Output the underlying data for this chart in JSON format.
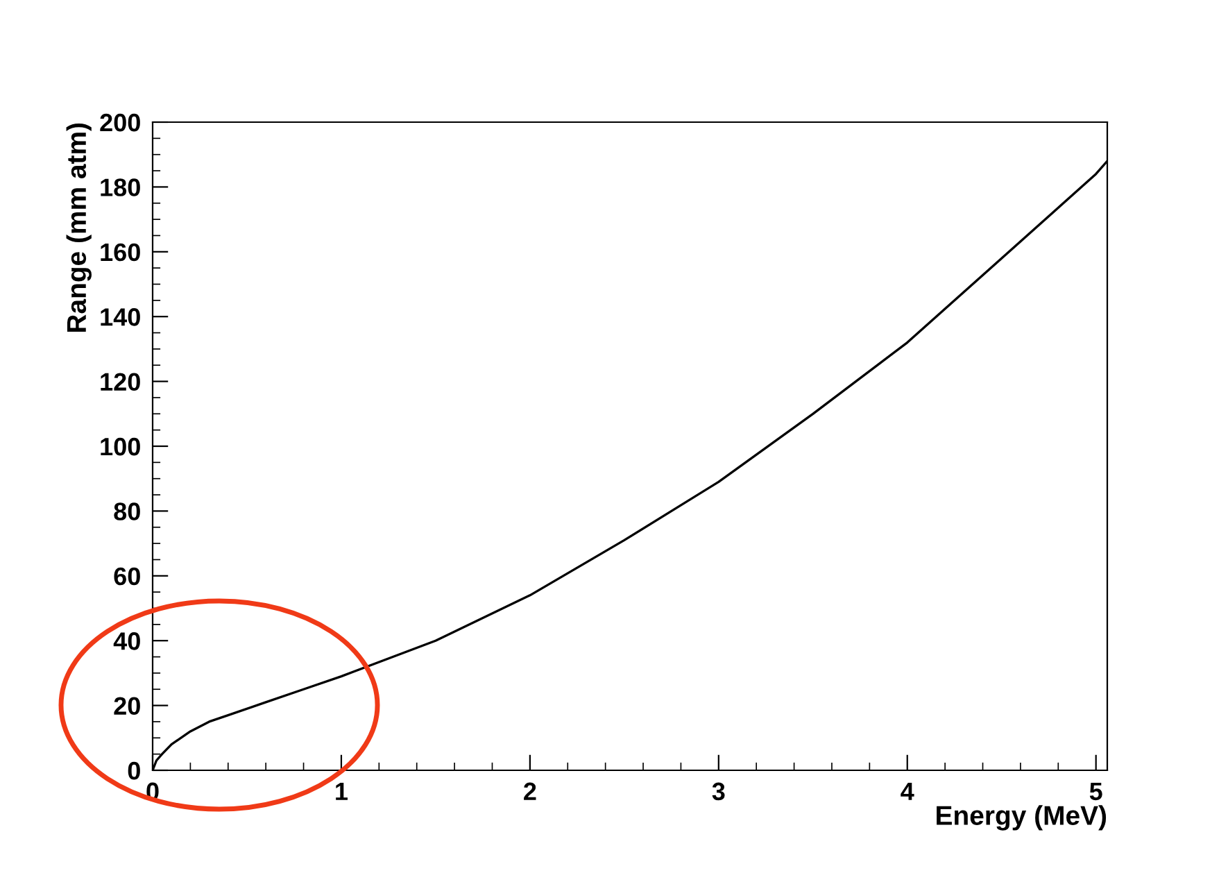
{
  "chart_data": {
    "type": "line",
    "xlabel": "Energy (MeV)",
    "ylabel": "Range (mm atm)",
    "x": [
      0,
      0.02,
      0.05,
      0.1,
      0.2,
      0.3,
      0.4,
      0.6,
      0.8,
      1.0,
      1.5,
      2.0,
      2.5,
      3.0,
      3.5,
      4.0,
      4.5,
      5.0,
      5.06
    ],
    "series": [
      {
        "color": "#000000",
        "values": [
          0,
          3,
          5,
          8,
          12,
          15,
          17,
          21,
          25,
          29,
          40,
          54,
          71,
          89,
          110,
          132,
          158,
          184,
          188
        ]
      }
    ],
    "xlim": [
      0,
      5.06
    ],
    "xticks": [
      0,
      1,
      2,
      3,
      4,
      5
    ],
    "ylim": [
      0,
      200
    ],
    "yticks": [
      0,
      20,
      40,
      60,
      80,
      100,
      120,
      140,
      160,
      180,
      200
    ],
    "grid": false,
    "legend": false,
    "marker": "none",
    "line_style": "solid"
  }
}
